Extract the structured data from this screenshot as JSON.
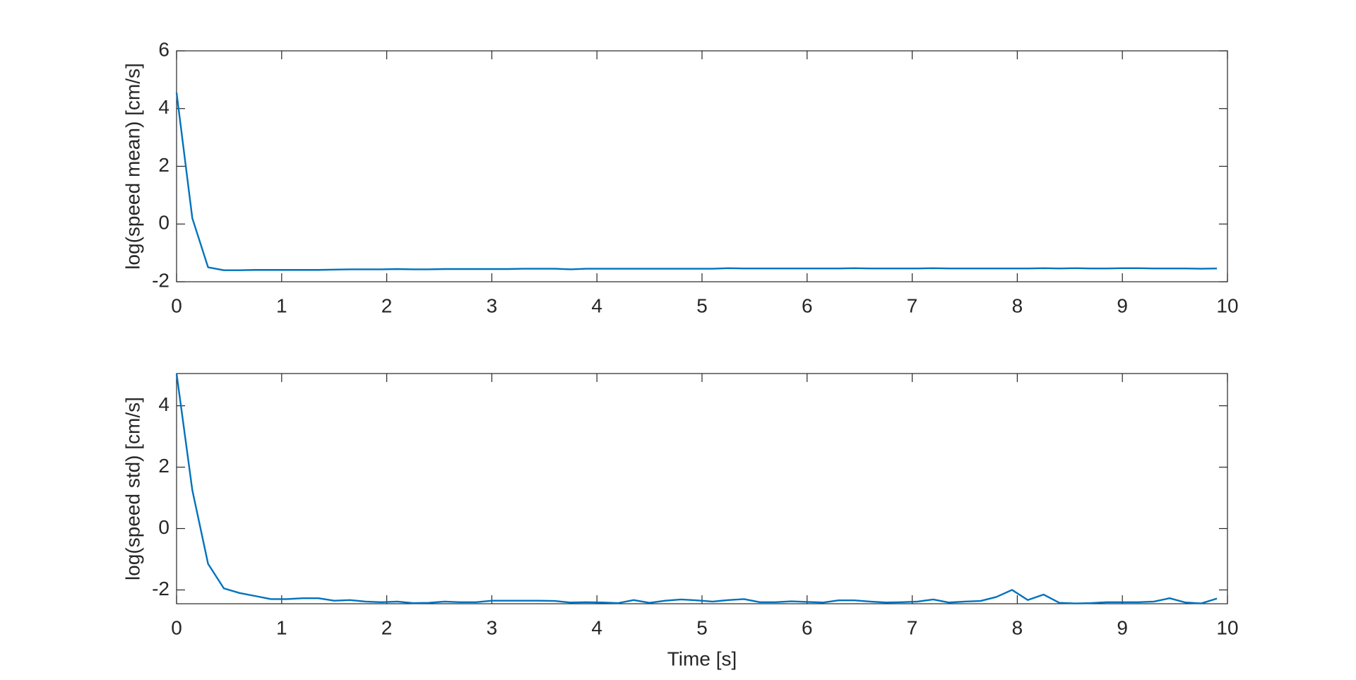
{
  "chart_data": [
    {
      "type": "line",
      "ylabel": "log(speed mean) [cm/s]",
      "color": "#0072bd",
      "x": [
        0,
        0.15,
        0.3,
        0.45,
        0.6,
        0.75,
        0.9,
        1.05,
        1.2,
        1.35,
        1.5,
        1.65,
        1.8,
        1.95,
        2.1,
        2.25,
        2.4,
        2.55,
        2.7,
        2.85,
        3,
        3.15,
        3.3,
        3.45,
        3.6,
        3.75,
        3.9,
        4.05,
        4.2,
        4.35,
        4.5,
        4.65,
        4.8,
        4.95,
        5.1,
        5.25,
        5.4,
        5.55,
        5.7,
        5.85,
        6,
        6.15,
        6.3,
        6.45,
        6.6,
        6.75,
        6.9,
        7.05,
        7.2,
        7.35,
        7.5,
        7.65,
        7.8,
        7.95,
        8.1,
        8.25,
        8.4,
        8.55,
        8.7,
        8.85,
        9,
        9.15,
        9.3,
        9.45,
        9.6,
        9.75,
        9.9
      ],
      "values": [
        4.55,
        0.2,
        -1.5,
        -1.6,
        -1.6,
        -1.59,
        -1.59,
        -1.59,
        -1.59,
        -1.59,
        -1.58,
        -1.57,
        -1.57,
        -1.57,
        -1.56,
        -1.57,
        -1.57,
        -1.56,
        -1.56,
        -1.56,
        -1.56,
        -1.56,
        -1.55,
        -1.55,
        -1.55,
        -1.57,
        -1.55,
        -1.55,
        -1.55,
        -1.55,
        -1.55,
        -1.55,
        -1.55,
        -1.55,
        -1.55,
        -1.53,
        -1.54,
        -1.54,
        -1.54,
        -1.54,
        -1.54,
        -1.54,
        -1.54,
        -1.53,
        -1.54,
        -1.54,
        -1.54,
        -1.54,
        -1.53,
        -1.54,
        -1.54,
        -1.54,
        -1.54,
        -1.54,
        -1.54,
        -1.53,
        -1.54,
        -1.53,
        -1.54,
        -1.54,
        -1.53,
        -1.53,
        -1.54,
        -1.54,
        -1.54,
        -1.55,
        -1.54
      ],
      "xlim": [
        0,
        10
      ],
      "xticks": [
        0,
        1,
        2,
        3,
        4,
        5,
        6,
        7,
        8,
        9,
        10
      ],
      "ylim": [
        -2,
        6
      ],
      "yticks": [
        -2,
        0,
        2,
        4,
        6
      ]
    },
    {
      "type": "line",
      "ylabel": "log(speed std) [cm/s]",
      "xlabel": "Time [s]",
      "color": "#0072bd",
      "x": [
        0,
        0.15,
        0.3,
        0.45,
        0.6,
        0.75,
        0.9,
        1.05,
        1.2,
        1.35,
        1.5,
        1.65,
        1.8,
        1.95,
        2.1,
        2.25,
        2.4,
        2.55,
        2.7,
        2.85,
        3,
        3.15,
        3.3,
        3.45,
        3.6,
        3.75,
        3.9,
        4.05,
        4.2,
        4.35,
        4.5,
        4.65,
        4.8,
        4.95,
        5.1,
        5.25,
        5.4,
        5.55,
        5.7,
        5.85,
        6,
        6.15,
        6.3,
        6.45,
        6.6,
        6.75,
        6.9,
        7.05,
        7.2,
        7.35,
        7.5,
        7.65,
        7.8,
        7.95,
        8.1,
        8.25,
        8.4,
        8.55,
        8.7,
        8.85,
        9,
        9.15,
        9.3,
        9.45,
        9.6,
        9.75,
        9.9
      ],
      "values": [
        5.05,
        1.25,
        -1.15,
        -1.95,
        -2.1,
        -2.2,
        -2.3,
        -2.3,
        -2.27,
        -2.27,
        -2.35,
        -2.33,
        -2.38,
        -2.4,
        -2.38,
        -2.43,
        -2.42,
        -2.38,
        -2.4,
        -2.4,
        -2.35,
        -2.35,
        -2.35,
        -2.35,
        -2.36,
        -2.41,
        -2.4,
        -2.41,
        -2.43,
        -2.33,
        -2.42,
        -2.35,
        -2.31,
        -2.34,
        -2.38,
        -2.33,
        -2.3,
        -2.4,
        -2.4,
        -2.37,
        -2.39,
        -2.41,
        -2.34,
        -2.34,
        -2.38,
        -2.41,
        -2.4,
        -2.38,
        -2.31,
        -2.41,
        -2.38,
        -2.36,
        -2.23,
        -2.0,
        -2.33,
        -2.15,
        -2.42,
        -2.44,
        -2.43,
        -2.4,
        -2.4,
        -2.4,
        -2.38,
        -2.27,
        -2.41,
        -2.44,
        -2.28
      ],
      "xlim": [
        0,
        10
      ],
      "xticks": [
        0,
        1,
        2,
        3,
        4,
        5,
        6,
        7,
        8,
        9,
        10
      ],
      "ylim": [
        -2.45,
        5.05
      ],
      "yticks": [
        -2,
        0,
        2,
        4
      ]
    }
  ]
}
